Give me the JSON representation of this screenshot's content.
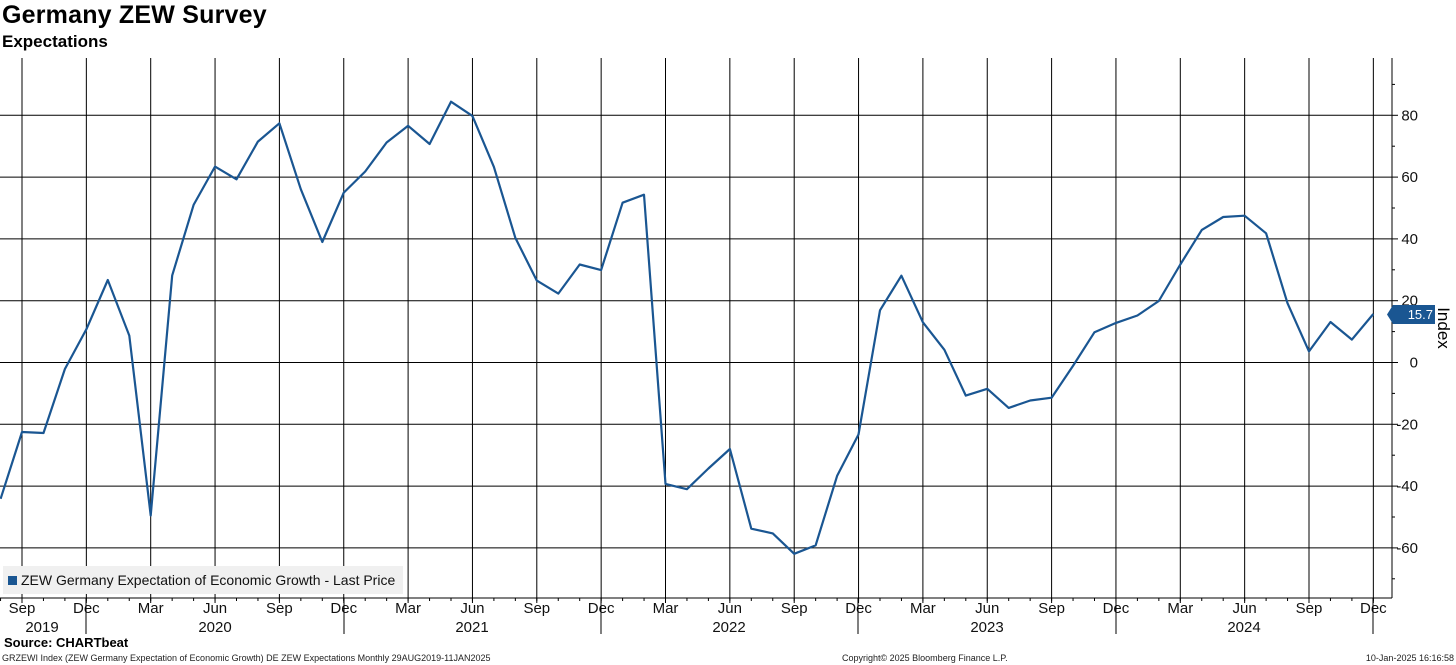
{
  "header": {
    "title": "Germany ZEW Survey",
    "subtitle": "Expectations"
  },
  "legend": {
    "label": "ZEW Germany Expectation of Economic Growth - Last Price",
    "color": "#1a5692"
  },
  "last_value_label": "15.7",
  "footer": {
    "source": "Source: CHARTbeat",
    "left": "GRZEWI Index (ZEW Germany Expectation of Economic Growth) DE ZEW Expectations  Monthly 29AUG2019-11JAN2025",
    "center": "Copyright© 2025 Bloomberg Finance L.P.",
    "right": "10-Jan-2025 16:16:58"
  },
  "chart_data": {
    "type": "line",
    "title": "Germany ZEW Survey",
    "subtitle": "Expectations",
    "ylabel": "Index",
    "ylim": [
      -74,
      100
    ],
    "yticks": [
      -60,
      -40,
      -20,
      0,
      20,
      40,
      60,
      80
    ],
    "grid": true,
    "legend_position": "bottom-left",
    "x_ticks": [
      "Sep",
      "Dec",
      "Mar",
      "Jun",
      "Sep",
      "Dec",
      "Mar",
      "Jun",
      "Sep",
      "Dec",
      "Mar",
      "Jun",
      "Sep",
      "Dec",
      "Mar",
      "Jun",
      "Sep",
      "Dec",
      "Mar",
      "Jun",
      "Sep",
      "Dec"
    ],
    "years": [
      "2019",
      "2020",
      "2021",
      "2022",
      "2023",
      "2024"
    ],
    "series": [
      {
        "name": "ZEW Germany Expectation of Economic Growth - Last Price",
        "color": "#1a5692",
        "x": [
          "2019-08",
          "2019-09",
          "2019-10",
          "2019-11",
          "2019-12",
          "2020-01",
          "2020-02",
          "2020-03",
          "2020-04",
          "2020-05",
          "2020-06",
          "2020-07",
          "2020-08",
          "2020-09",
          "2020-10",
          "2020-11",
          "2020-12",
          "2021-01",
          "2021-02",
          "2021-03",
          "2021-04",
          "2021-05",
          "2021-06",
          "2021-07",
          "2021-08",
          "2021-09",
          "2021-10",
          "2021-11",
          "2021-12",
          "2022-01",
          "2022-02",
          "2022-03",
          "2022-04",
          "2022-05",
          "2022-06",
          "2022-07",
          "2022-08",
          "2022-09",
          "2022-10",
          "2022-11",
          "2022-12",
          "2023-01",
          "2023-02",
          "2023-03",
          "2023-04",
          "2023-05",
          "2023-06",
          "2023-07",
          "2023-08",
          "2023-09",
          "2023-10",
          "2023-11",
          "2023-12",
          "2024-01",
          "2024-02",
          "2024-03",
          "2024-04",
          "2024-05",
          "2024-06",
          "2024-07",
          "2024-08",
          "2024-09",
          "2024-10",
          "2024-11",
          "2024-12"
        ],
        "values": [
          -44.1,
          -22.5,
          -22.8,
          -2.1,
          10.7,
          26.7,
          8.7,
          -49.5,
          28.2,
          51.0,
          63.4,
          59.3,
          71.5,
          77.4,
          56.1,
          39.0,
          55.0,
          61.8,
          71.2,
          76.6,
          70.7,
          84.4,
          79.8,
          63.3,
          40.4,
          26.5,
          22.3,
          31.7,
          29.9,
          51.7,
          54.3,
          -39.3,
          -41.0,
          -34.3,
          -28.0,
          -53.8,
          -55.3,
          -61.9,
          -59.2,
          -36.7,
          -23.3,
          16.9,
          28.1,
          13.0,
          4.1,
          -10.7,
          -8.5,
          -14.7,
          -12.3,
          -11.4,
          -1.1,
          9.8,
          12.8,
          15.2,
          19.9,
          31.7,
          42.9,
          47.1,
          47.5,
          41.8,
          19.2,
          3.6,
          13.1,
          7.4,
          15.7
        ]
      }
    ]
  }
}
